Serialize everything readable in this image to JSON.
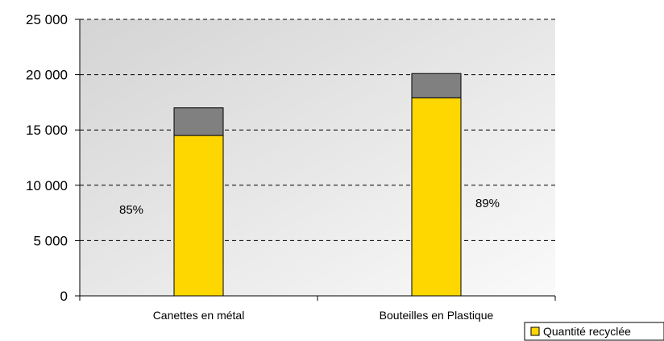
{
  "chart_data": {
    "type": "bar",
    "stacked": true,
    "categories": [
      "Canettes en métal",
      "Bouteilles en Plastique"
    ],
    "series": [
      {
        "name": "Quantité recyclée",
        "values": [
          14500,
          17900
        ],
        "color": "#FFD700"
      },
      {
        "name": "",
        "values": [
          2500,
          2200
        ],
        "color": "#808080"
      }
    ],
    "ylim": [
      0,
      25000
    ],
    "yticks": [
      0,
      5000,
      10000,
      15000,
      20000,
      25000
    ],
    "ytick_labels": [
      "0",
      "5 000",
      "10 000",
      "15 000",
      "20 000",
      "25 000"
    ],
    "annotations": [
      "85%",
      "89%"
    ],
    "grid": true,
    "legend_position": "bottom-right",
    "plot_background": "#e2e2e2"
  }
}
